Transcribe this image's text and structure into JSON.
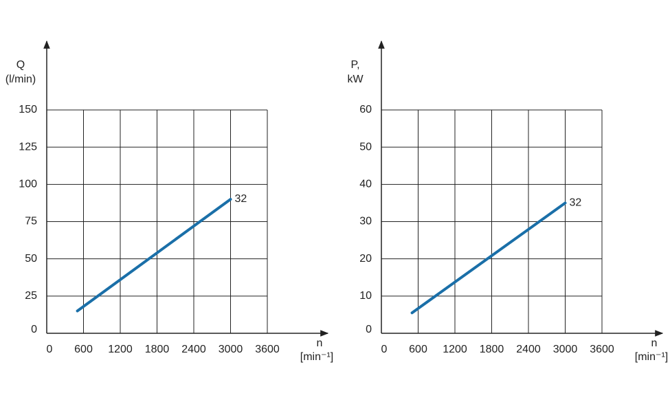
{
  "chart_data": [
    {
      "type": "line",
      "ylabel": [
        "Q",
        "(l/min)"
      ],
      "xlabel": [
        "n",
        "[min⁻¹]"
      ],
      "x": [
        500,
        3000
      ],
      "series": [
        {
          "name": "32",
          "color": "#1a6fa8",
          "values": [
            15,
            90
          ]
        }
      ],
      "xlim": [
        0,
        3600
      ],
      "xticks": [
        0,
        600,
        1200,
        1800,
        2400,
        3000,
        3600
      ],
      "ylim": [
        0,
        150
      ],
      "yticks": [
        0,
        25,
        50,
        75,
        100,
        125,
        150
      ],
      "grid": true
    },
    {
      "type": "line",
      "ylabel": [
        "P,",
        "kW"
      ],
      "xlabel": [
        "n",
        "[min⁻¹]"
      ],
      "x": [
        500,
        3000
      ],
      "series": [
        {
          "name": "32",
          "color": "#1a6fa8",
          "values": [
            5.5,
            35
          ]
        }
      ],
      "xlim": [
        0,
        3600
      ],
      "xticks": [
        0,
        600,
        1200,
        1800,
        2400,
        3000,
        3600
      ],
      "ylim": [
        0,
        60
      ],
      "yticks": [
        0,
        10,
        20,
        30,
        40,
        50,
        60
      ],
      "grid": true
    }
  ]
}
